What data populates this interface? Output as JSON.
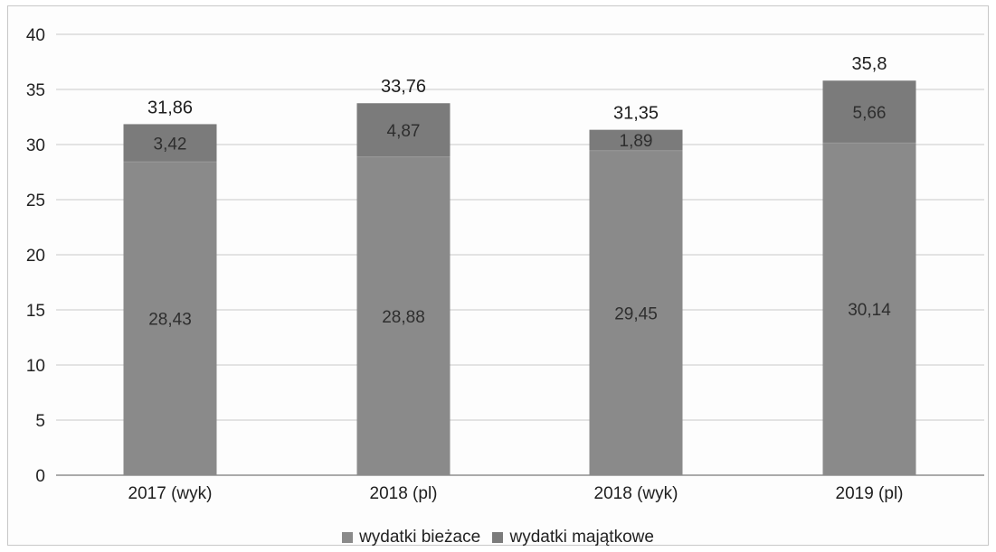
{
  "chart_data": {
    "type": "bar",
    "stacked": true,
    "title": "",
    "xlabel": "",
    "ylabel": "",
    "categories": [
      "2017 (wyk)",
      "2018 (pl)",
      "2018 (wyk)",
      "2019 (pl)"
    ],
    "series": [
      {
        "name": "wydatki bieżace",
        "values": [
          28.43,
          28.88,
          29.45,
          30.14
        ],
        "labels": [
          "28,43",
          "28,88",
          "29,45",
          "30,14"
        ],
        "color": "#8a8a8a"
      },
      {
        "name": "wydatki majątkowe",
        "values": [
          3.42,
          4.87,
          1.89,
          5.66
        ],
        "labels": [
          "3,42",
          "4,87",
          "1,89",
          "5,66"
        ],
        "color": "#7b7b7b"
      }
    ],
    "totals": [
      31.86,
      33.76,
      31.35,
      35.8
    ],
    "total_labels": [
      "31,86",
      "33,76",
      "31,35",
      "35,8"
    ],
    "ylim": [
      0,
      40
    ],
    "yticks": [
      0,
      5,
      10,
      15,
      20,
      25,
      30,
      35,
      40
    ],
    "grid": true,
    "legend_position": "bottom-center"
  }
}
